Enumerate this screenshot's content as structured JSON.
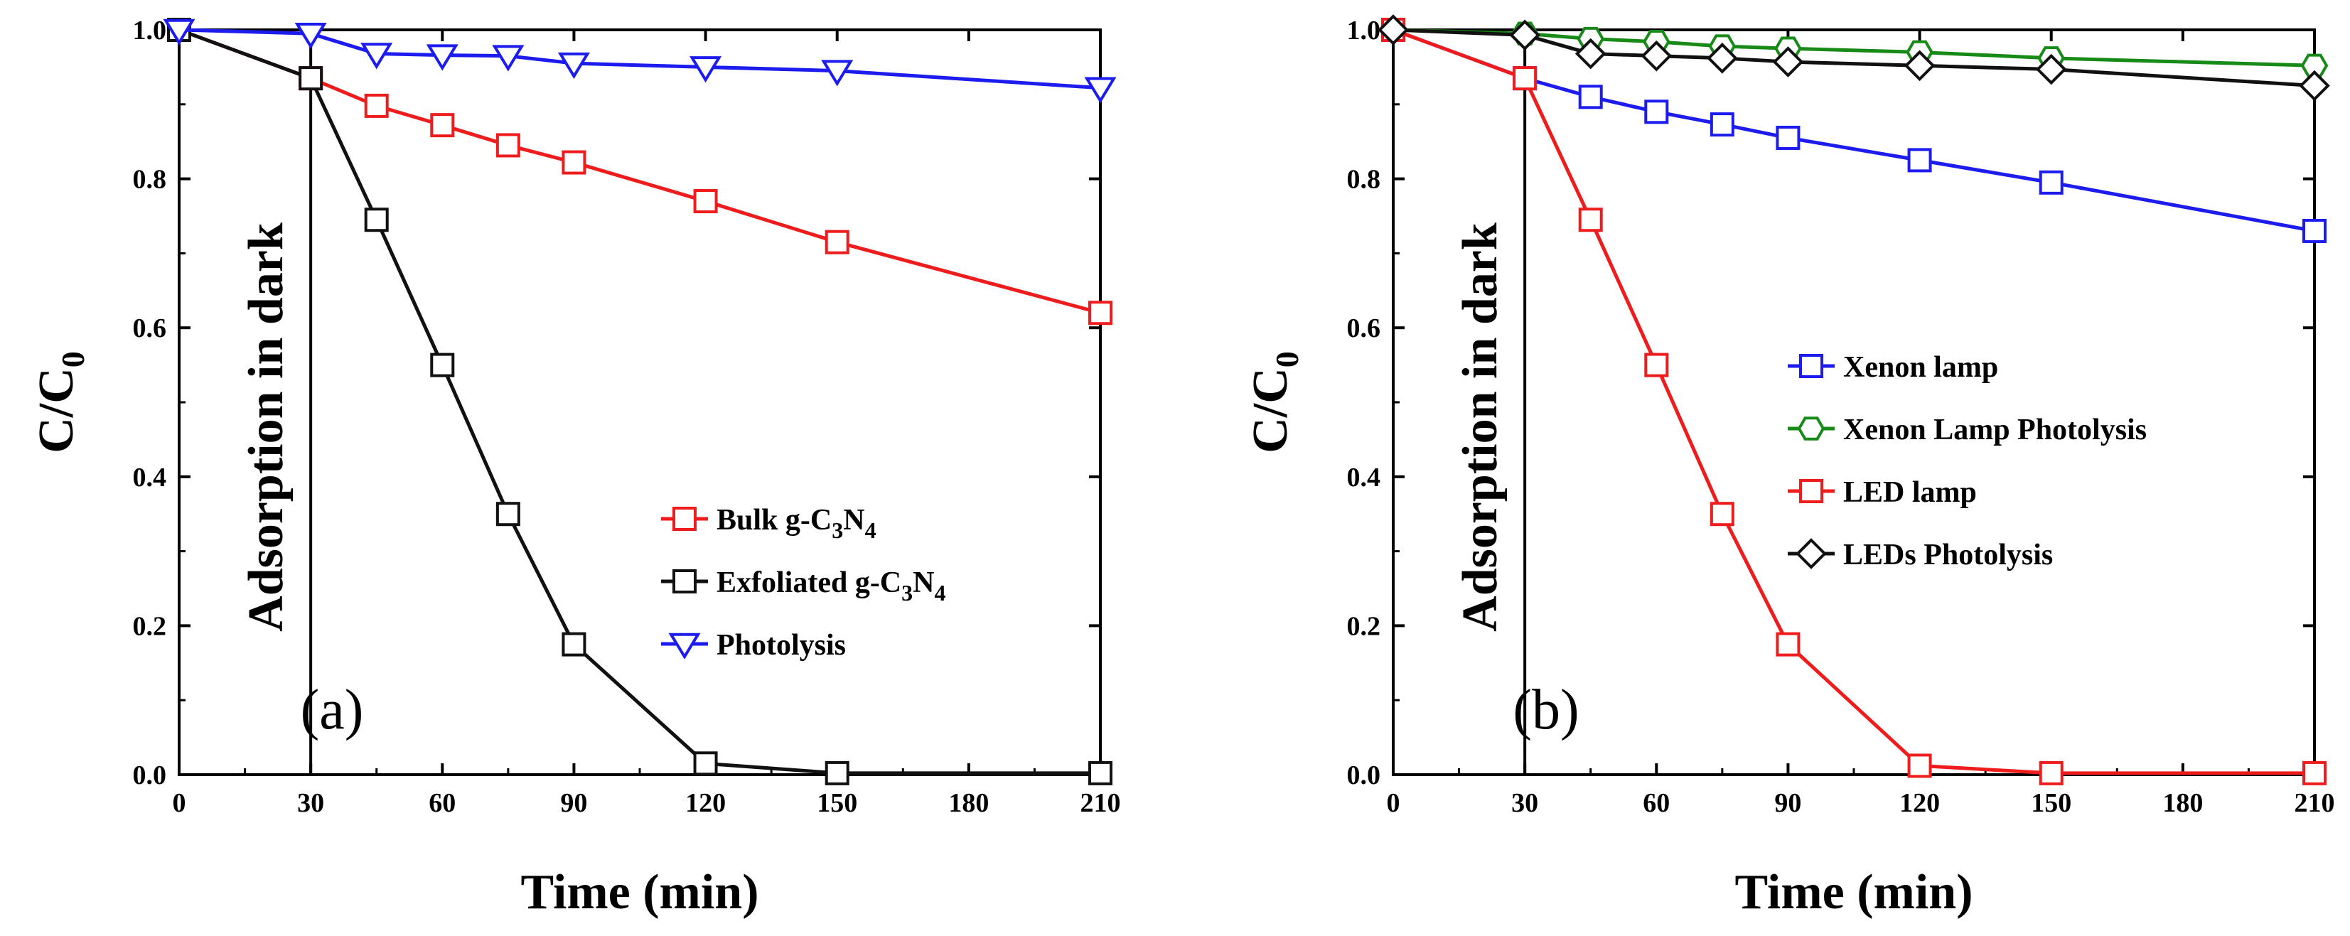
{
  "chart_data": [
    {
      "type": "line",
      "panel_label": "(a)",
      "xlabel": "Time (min)",
      "ylabel_main": "C/C",
      "ylabel_sub": "0",
      "xlim": [
        0,
        210
      ],
      "ylim": [
        0,
        1.0
      ],
      "xticks": [
        0,
        30,
        60,
        90,
        120,
        150,
        180,
        210
      ],
      "yticks": [
        "0.0",
        "0.2",
        "0.4",
        "0.6",
        "0.8",
        "1.0"
      ],
      "annotation": "Adsorption in dark",
      "vline_x": 30,
      "legend_position": "lower-right",
      "series": [
        {
          "name": "Bulk g-C3N4",
          "name_parts": [
            "Bulk g-C",
            "3",
            "N",
            "4"
          ],
          "color": "#ee1c1c",
          "marker": "square",
          "x": [
            0,
            30,
            45,
            60,
            75,
            90,
            120,
            150,
            210
          ],
          "y": [
            1.0,
            0.935,
            0.898,
            0.872,
            0.845,
            0.822,
            0.77,
            0.715,
            0.62
          ]
        },
        {
          "name": "Exfoliated g-C3N4",
          "name_parts": [
            "Exfoliated g-C",
            "3",
            "N",
            "4"
          ],
          "color": "#111111",
          "marker": "square",
          "x": [
            0,
            30,
            45,
            60,
            75,
            90,
            120,
            150,
            210
          ],
          "y": [
            1.0,
            0.935,
            0.745,
            0.55,
            0.35,
            0.175,
            0.015,
            0.002,
            0.002
          ]
        },
        {
          "name": "Photolysis",
          "name_parts": [
            "Photolysis"
          ],
          "color": "#1c1cee",
          "marker": "triangle-down",
          "x": [
            0,
            30,
            45,
            60,
            75,
            90,
            120,
            150,
            210
          ],
          "y": [
            1.0,
            0.995,
            0.968,
            0.966,
            0.965,
            0.955,
            0.95,
            0.945,
            0.922
          ]
        }
      ]
    },
    {
      "type": "line",
      "panel_label": "(b)",
      "xlabel": "Time (min)",
      "ylabel_main": "C/C",
      "ylabel_sub": "0",
      "xlim": [
        0,
        210
      ],
      "ylim": [
        0,
        1.0
      ],
      "xticks": [
        0,
        30,
        60,
        90,
        120,
        150,
        180,
        210
      ],
      "yticks": [
        "0.0",
        "0.2",
        "0.4",
        "0.6",
        "0.8",
        "1.0"
      ],
      "annotation": "Adsorption in dark",
      "vline_x": 30,
      "legend_position": "center-right",
      "series": [
        {
          "name": "Xenon lamp",
          "name_parts": [
            "Xenon lamp"
          ],
          "color": "#1c1cee",
          "marker": "square",
          "x": [
            0,
            30,
            45,
            60,
            75,
            90,
            120,
            150,
            210
          ],
          "y": [
            1.0,
            0.935,
            0.91,
            0.89,
            0.873,
            0.855,
            0.825,
            0.795,
            0.73
          ]
        },
        {
          "name": "Xenon Lamp Photolysis",
          "name_parts": [
            "Xenon Lamp Photolysis"
          ],
          "color": "#178a17",
          "marker": "hexagon",
          "x": [
            0,
            30,
            45,
            60,
            75,
            90,
            120,
            150,
            210
          ],
          "y": [
            1.0,
            0.995,
            0.988,
            0.984,
            0.978,
            0.975,
            0.97,
            0.962,
            0.952
          ]
        },
        {
          "name": "LED lamp",
          "name_parts": [
            "LED lamp"
          ],
          "color": "#ee1c1c",
          "marker": "square",
          "x": [
            0,
            30,
            45,
            60,
            75,
            90,
            120,
            150,
            210
          ],
          "y": [
            1.0,
            0.935,
            0.745,
            0.55,
            0.35,
            0.175,
            0.012,
            0.002,
            0.002
          ]
        },
        {
          "name": "LEDs Photolysis",
          "name_parts": [
            "LEDs Photolysis"
          ],
          "color": "#111111",
          "marker": "diamond",
          "x": [
            0,
            30,
            45,
            60,
            75,
            90,
            120,
            150,
            210
          ],
          "y": [
            1.0,
            0.993,
            0.968,
            0.965,
            0.962,
            0.957,
            0.952,
            0.947,
            0.925
          ]
        }
      ]
    }
  ]
}
